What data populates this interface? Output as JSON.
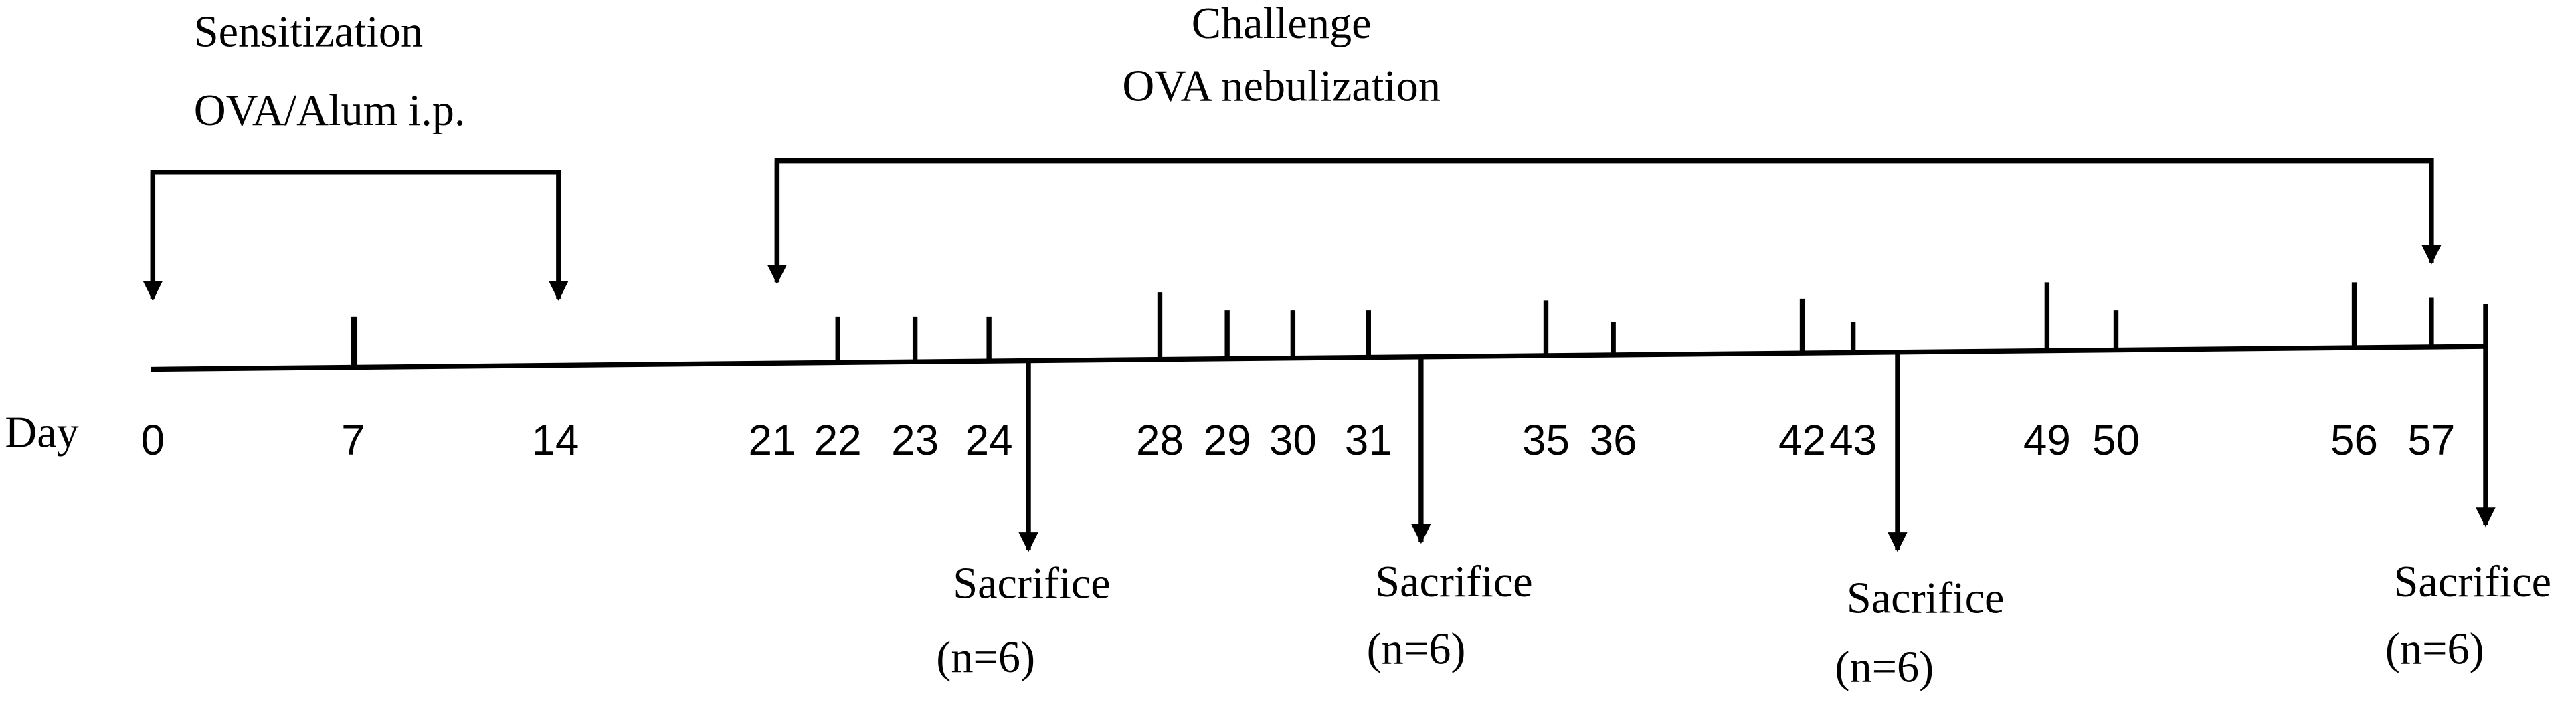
{
  "sensitization": {
    "title": "Sensitization",
    "subtitle": "OVA/Alum i.p."
  },
  "challenge": {
    "title": "Challenge",
    "subtitle": "OVA nebulization"
  },
  "axis_label": "Day",
  "days": [
    0,
    7,
    14,
    21,
    22,
    23,
    24,
    28,
    29,
    30,
    31,
    35,
    36,
    42,
    43,
    49,
    50,
    56,
    57
  ],
  "sacrifices": [
    {
      "label": "Sacrifice",
      "n": "(n=6)"
    },
    {
      "label": "Sacrifice",
      "n": "(n=6)"
    },
    {
      "label": "Sacrifice",
      "n": "(n=6)"
    },
    {
      "label": "Sacrifice",
      "n": "(n=6)"
    }
  ]
}
